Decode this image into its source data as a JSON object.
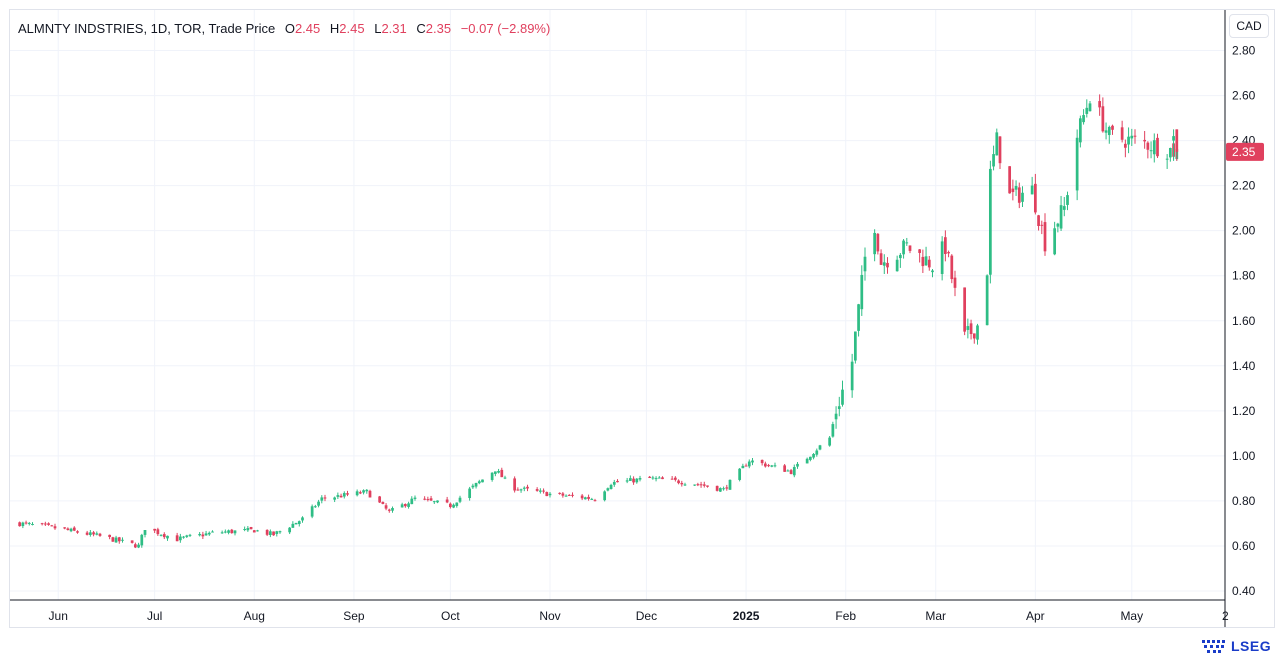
{
  "legend": {
    "symbol": "ALMNTY INDSTRIES, 1D, TOR, Trade Price",
    "open_label": "O",
    "open": "2.45",
    "high_label": "H",
    "high": "2.45",
    "low_label": "L",
    "low": "2.31",
    "close_label": "C",
    "close": "2.35",
    "change": "−0.07 (−2.89%)"
  },
  "currency": "CAD",
  "brand": "LSEG",
  "colors": {
    "up": "#26a69a",
    "up_alt": "#2ebd85",
    "down": "#e0405e",
    "grid": "#f0f3fa",
    "axis_text": "#131722"
  },
  "chart_data": {
    "type": "candlestick",
    "title": "ALMNTY INDSTRIES, 1D, TOR, Trade Price",
    "x_ticks": [
      "Jun",
      "Jul",
      "Aug",
      "Sep",
      "Oct",
      "Nov",
      "Dec",
      "2025",
      "Feb",
      "Mar",
      "Apr",
      "May",
      "2"
    ],
    "y_ticks": [
      "0.40",
      "0.60",
      "0.80",
      "1.00",
      "1.20",
      "1.40",
      "1.60",
      "1.80",
      "2.00",
      "2.20",
      "2.40",
      "2.60",
      "2.80"
    ],
    "ylim": [
      0.36,
      2.98
    ],
    "last_price": "2.35",
    "grid": true,
    "close_path": [
      {
        "d": "2024-05-20",
        "c": 0.7
      },
      {
        "d": "2024-05-31",
        "c": 0.68
      },
      {
        "d": "2024-06-15",
        "c": 0.64
      },
      {
        "d": "2024-06-26",
        "c": 0.6
      },
      {
        "d": "2024-06-28",
        "c": 0.68
      },
      {
        "d": "2024-07-08",
        "c": 0.63
      },
      {
        "d": "2024-07-20",
        "c": 0.66
      },
      {
        "d": "2024-08-01",
        "c": 0.67
      },
      {
        "d": "2024-08-07",
        "c": 0.65
      },
      {
        "d": "2024-08-16",
        "c": 0.72
      },
      {
        "d": "2024-08-22",
        "c": 0.81
      },
      {
        "d": "2024-09-05",
        "c": 0.84
      },
      {
        "d": "2024-09-12",
        "c": 0.75
      },
      {
        "d": "2024-09-20",
        "c": 0.81
      },
      {
        "d": "2024-10-01",
        "c": 0.78
      },
      {
        "d": "2024-10-07",
        "c": 0.85
      },
      {
        "d": "2024-10-15",
        "c": 0.94
      },
      {
        "d": "2024-10-20",
        "c": 0.86
      },
      {
        "d": "2024-11-01",
        "c": 0.83
      },
      {
        "d": "2024-11-15",
        "c": 0.81
      },
      {
        "d": "2024-11-20",
        "c": 0.88
      },
      {
        "d": "2024-12-02",
        "c": 0.9
      },
      {
        "d": "2024-12-15",
        "c": 0.88
      },
      {
        "d": "2024-12-25",
        "c": 0.85
      },
      {
        "d": "2025-01-02",
        "c": 0.98
      },
      {
        "d": "2025-01-10",
        "c": 0.95
      },
      {
        "d": "2025-01-15",
        "c": 0.93
      },
      {
        "d": "2025-01-27",
        "c": 1.08
      },
      {
        "d": "2025-01-29",
        "c": 1.2
      },
      {
        "d": "2025-02-03",
        "c": 1.42
      },
      {
        "d": "2025-02-05",
        "c": 1.65
      },
      {
        "d": "2025-02-07",
        "c": 1.88
      },
      {
        "d": "2025-02-10",
        "c": 2.03
      },
      {
        "d": "2025-02-12",
        "c": 1.86
      },
      {
        "d": "2025-02-20",
        "c": 1.93
      },
      {
        "d": "2025-02-28",
        "c": 1.85
      },
      {
        "d": "2025-03-04",
        "c": 1.93
      },
      {
        "d": "2025-03-07",
        "c": 1.72
      },
      {
        "d": "2025-03-10",
        "c": 1.52
      },
      {
        "d": "2025-03-14",
        "c": 1.58
      },
      {
        "d": "2025-03-17",
        "c": 1.83
      },
      {
        "d": "2025-03-18",
        "c": 2.25
      },
      {
        "d": "2025-03-20",
        "c": 2.4
      },
      {
        "d": "2025-03-24",
        "c": 2.15
      },
      {
        "d": "2025-03-31",
        "c": 2.18
      },
      {
        "d": "2025-04-04",
        "c": 1.95
      },
      {
        "d": "2025-04-10",
        "c": 2.1
      },
      {
        "d": "2025-04-14",
        "c": 2.42
      },
      {
        "d": "2025-04-18",
        "c": 2.6
      },
      {
        "d": "2025-04-24",
        "c": 2.42
      },
      {
        "d": "2025-05-01",
        "c": 2.4
      },
      {
        "d": "2025-05-08",
        "c": 2.38
      },
      {
        "d": "2025-05-15",
        "c": 2.35
      }
    ],
    "candles_tail": [
      {
        "d": "2025-05-14",
        "o": 2.4,
        "h": 2.45,
        "l": 2.31,
        "c": 2.42
      },
      {
        "d": "2025-05-15",
        "o": 2.45,
        "h": 2.45,
        "l": 2.31,
        "c": 2.35
      }
    ]
  }
}
